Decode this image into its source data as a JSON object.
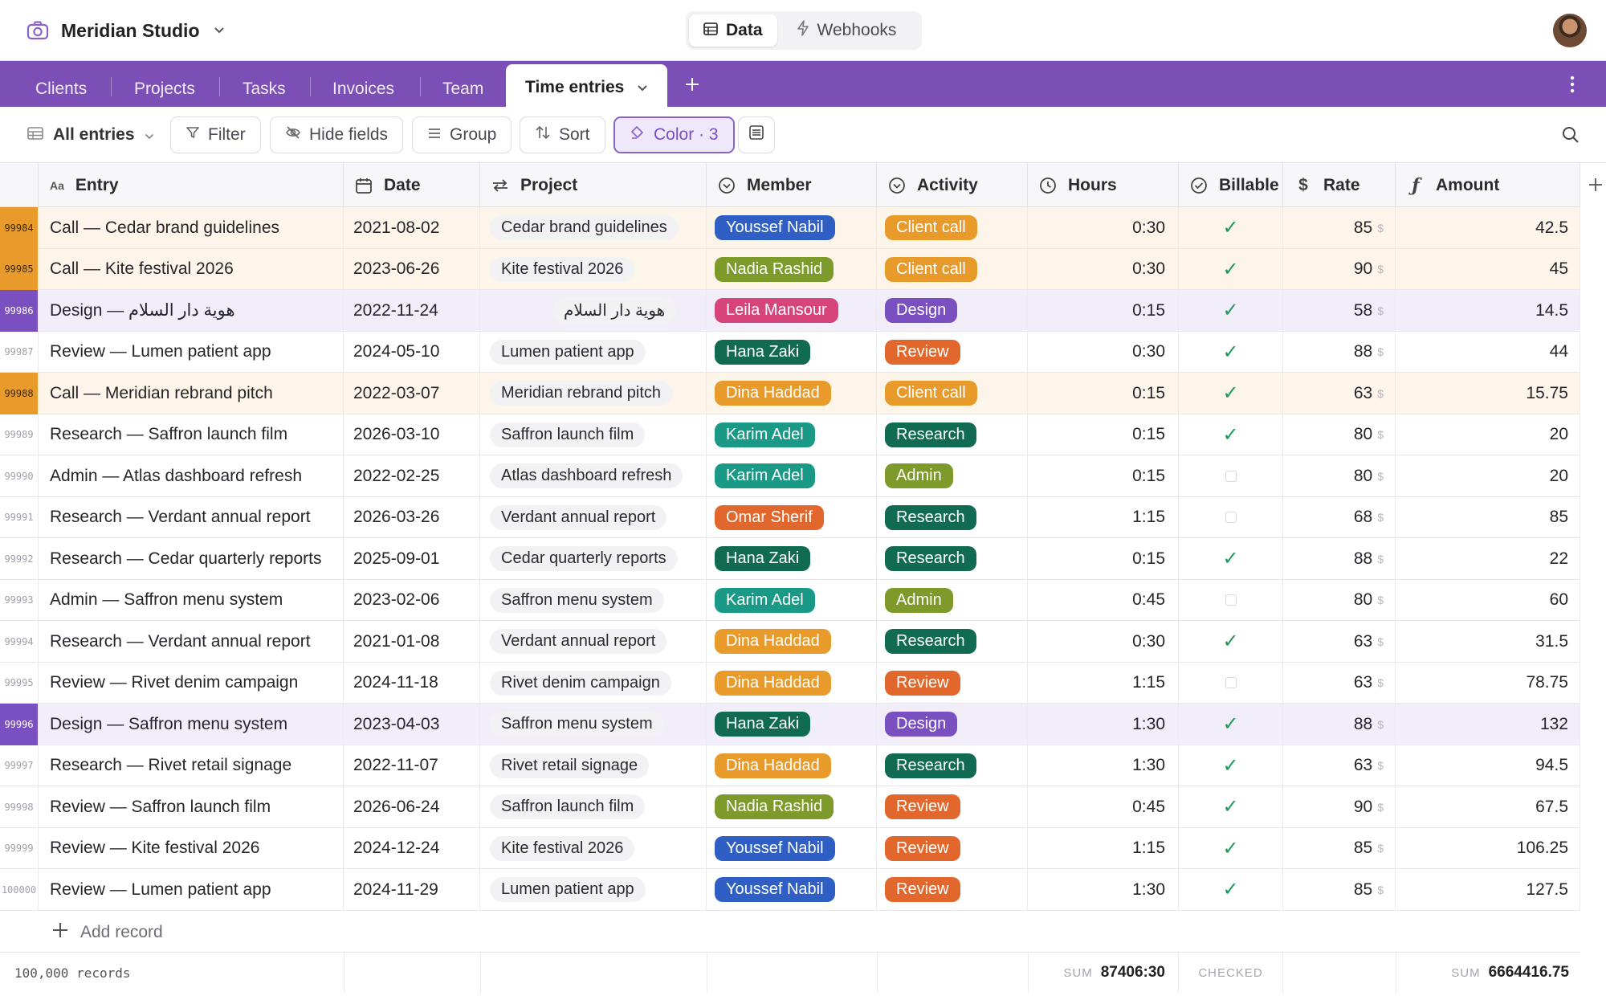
{
  "workspace": {
    "name": "Meridian Studio"
  },
  "segments": [
    {
      "label": "Data",
      "active": true
    },
    {
      "label": "Webhooks",
      "active": false
    }
  ],
  "tabs": [
    {
      "label": "Clients"
    },
    {
      "label": "Projects"
    },
    {
      "label": "Tasks"
    },
    {
      "label": "Invoices"
    },
    {
      "label": "Team"
    },
    {
      "label": "Time entries",
      "active": true
    }
  ],
  "toolbar": {
    "view": "All entries",
    "filter": "Filter",
    "hide_fields": "Hide fields",
    "group": "Group",
    "sort": "Sort",
    "color": "Color · 3"
  },
  "columns": {
    "entry": "Entry",
    "date": "Date",
    "project": "Project",
    "member": "Member",
    "activity": "Activity",
    "hours": "Hours",
    "billable": "Billable",
    "rate": "Rate",
    "amount": "Amount"
  },
  "entry_type_icon": "Aa",
  "currency": "$",
  "colors": {
    "accent": "#7b4fb6",
    "Youssef Nabil": "#2f5fc4",
    "Nadia Rashid": "#7d9a2a",
    "Leila Mansour": "#d6447a",
    "Hana Zaki": "#106b52",
    "Dina Haddad": "#e89a2a",
    "Karim Adel": "#1a9a86",
    "Omar Sherif": "#e2672d",
    "Client call": "#e89a2a",
    "Design": "#7a4fc0",
    "Review": "#e2672d",
    "Research": "#106b52",
    "Admin": "#7d9a2a"
  },
  "rows": [
    {
      "id": "99984",
      "tint": "orange",
      "entry": "Call — Cedar brand guidelines",
      "date": "2021-08-02",
      "project": "Cedar brand guidelines",
      "member": "Youssef Nabil",
      "activity": "Client call",
      "hours": "0:30",
      "billable": true,
      "rate": "85",
      "amount": "42.5"
    },
    {
      "id": "99985",
      "tint": "orange",
      "entry": "Call — Kite festival 2026",
      "date": "2023-06-26",
      "project": "Kite festival 2026",
      "member": "Nadia Rashid",
      "activity": "Client call",
      "hours": "0:30",
      "billable": true,
      "rate": "90",
      "amount": "45"
    },
    {
      "id": "99986",
      "tint": "purple",
      "entry": "Design — هوية دار السلام",
      "date": "2022-11-24",
      "project": "هوية دار السلام",
      "rtl": true,
      "member": "Leila Mansour",
      "activity": "Design",
      "hours": "0:15",
      "billable": true,
      "rate": "58",
      "amount": "14.5"
    },
    {
      "id": "99987",
      "tint": "",
      "entry": "Review — Lumen patient app",
      "date": "2024-05-10",
      "project": "Lumen patient app",
      "member": "Hana Zaki",
      "activity": "Review",
      "hours": "0:30",
      "billable": true,
      "rate": "88",
      "amount": "44"
    },
    {
      "id": "99988",
      "tint": "orange",
      "entry": "Call — Meridian rebrand pitch",
      "date": "2022-03-07",
      "project": "Meridian rebrand pitch",
      "member": "Dina Haddad",
      "activity": "Client call",
      "hours": "0:15",
      "billable": true,
      "rate": "63",
      "amount": "15.75"
    },
    {
      "id": "99989",
      "tint": "",
      "entry": "Research — Saffron launch film",
      "date": "2026-03-10",
      "project": "Saffron launch film",
      "member": "Karim Adel",
      "activity": "Research",
      "hours": "0:15",
      "billable": true,
      "rate": "80",
      "amount": "20"
    },
    {
      "id": "99990",
      "tint": "",
      "entry": "Admin — Atlas dashboard refresh",
      "date": "2022-02-25",
      "project": "Atlas dashboard refresh",
      "member": "Karim Adel",
      "activity": "Admin",
      "hours": "0:15",
      "billable": false,
      "rate": "80",
      "amount": "20"
    },
    {
      "id": "99991",
      "tint": "",
      "entry": "Research — Verdant annual report",
      "date": "2026-03-26",
      "project": "Verdant annual report",
      "member": "Omar Sherif",
      "activity": "Research",
      "hours": "1:15",
      "billable": false,
      "rate": "68",
      "amount": "85"
    },
    {
      "id": "99992",
      "tint": "",
      "entry": "Research — Cedar quarterly reports",
      "date": "2025-09-01",
      "project": "Cedar quarterly reports",
      "member": "Hana Zaki",
      "activity": "Research",
      "hours": "0:15",
      "billable": true,
      "rate": "88",
      "amount": "22"
    },
    {
      "id": "99993",
      "tint": "",
      "entry": "Admin — Saffron menu system",
      "date": "2023-02-06",
      "project": "Saffron menu system",
      "member": "Karim Adel",
      "activity": "Admin",
      "hours": "0:45",
      "billable": false,
      "rate": "80",
      "amount": "60"
    },
    {
      "id": "99994",
      "tint": "",
      "entry": "Research — Verdant annual report",
      "date": "2021-01-08",
      "project": "Verdant annual report",
      "member": "Dina Haddad",
      "activity": "Research",
      "hours": "0:30",
      "billable": true,
      "rate": "63",
      "amount": "31.5"
    },
    {
      "id": "99995",
      "tint": "",
      "entry": "Review — Rivet denim campaign",
      "date": "2024-11-18",
      "project": "Rivet denim campaign",
      "member": "Dina Haddad",
      "activity": "Review",
      "hours": "1:15",
      "billable": false,
      "rate": "63",
      "amount": "78.75"
    },
    {
      "id": "99996",
      "tint": "purple",
      "entry": "Design — Saffron menu system",
      "date": "2023-04-03",
      "project": "Saffron menu system",
      "member": "Hana Zaki",
      "activity": "Design",
      "hours": "1:30",
      "billable": true,
      "rate": "88",
      "amount": "132"
    },
    {
      "id": "99997",
      "tint": "",
      "entry": "Research — Rivet retail signage",
      "date": "2022-11-07",
      "project": "Rivet retail signage",
      "member": "Dina Haddad",
      "activity": "Research",
      "hours": "1:30",
      "billable": true,
      "rate": "63",
      "amount": "94.5"
    },
    {
      "id": "99998",
      "tint": "",
      "entry": "Review — Saffron launch film",
      "date": "2026-06-24",
      "project": "Saffron launch film",
      "member": "Nadia Rashid",
      "activity": "Review",
      "hours": "0:45",
      "billable": true,
      "rate": "90",
      "amount": "67.5"
    },
    {
      "id": "99999",
      "tint": "",
      "entry": "Review — Kite festival 2026",
      "date": "2024-12-24",
      "project": "Kite festival 2026",
      "member": "Youssef Nabil",
      "activity": "Review",
      "hours": "1:15",
      "billable": true,
      "rate": "85",
      "amount": "106.25"
    },
    {
      "id": "100000",
      "tint": "",
      "entry": "Review — Lumen patient app",
      "date": "2024-11-29",
      "project": "Lumen patient app",
      "member": "Youssef Nabil",
      "activity": "Review",
      "hours": "1:30",
      "billable": true,
      "rate": "85",
      "amount": "127.5"
    }
  ],
  "add_record": "Add record",
  "footer": {
    "count": "100,000 records",
    "hours_label": "SUM",
    "hours_sum": "87406:30",
    "billable_label": "CHECKED",
    "amount_label": "SUM",
    "amount_sum": "6664416.75"
  }
}
